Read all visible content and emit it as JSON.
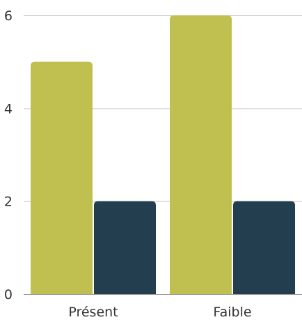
{
  "chart_data": {
    "type": "bar",
    "title": "",
    "xlabel": "",
    "ylabel": "",
    "categories": [
      "Présent",
      "Faible"
    ],
    "series": [
      {
        "values": [
          5,
          6
        ],
        "color": "#c0c050"
      },
      {
        "values": [
          2,
          2
        ],
        "color": "#233f4f"
      }
    ],
    "ylim": [
      0,
      6
    ],
    "yticks": [
      0,
      2,
      4,
      6
    ],
    "grid": true,
    "legend": "none"
  }
}
